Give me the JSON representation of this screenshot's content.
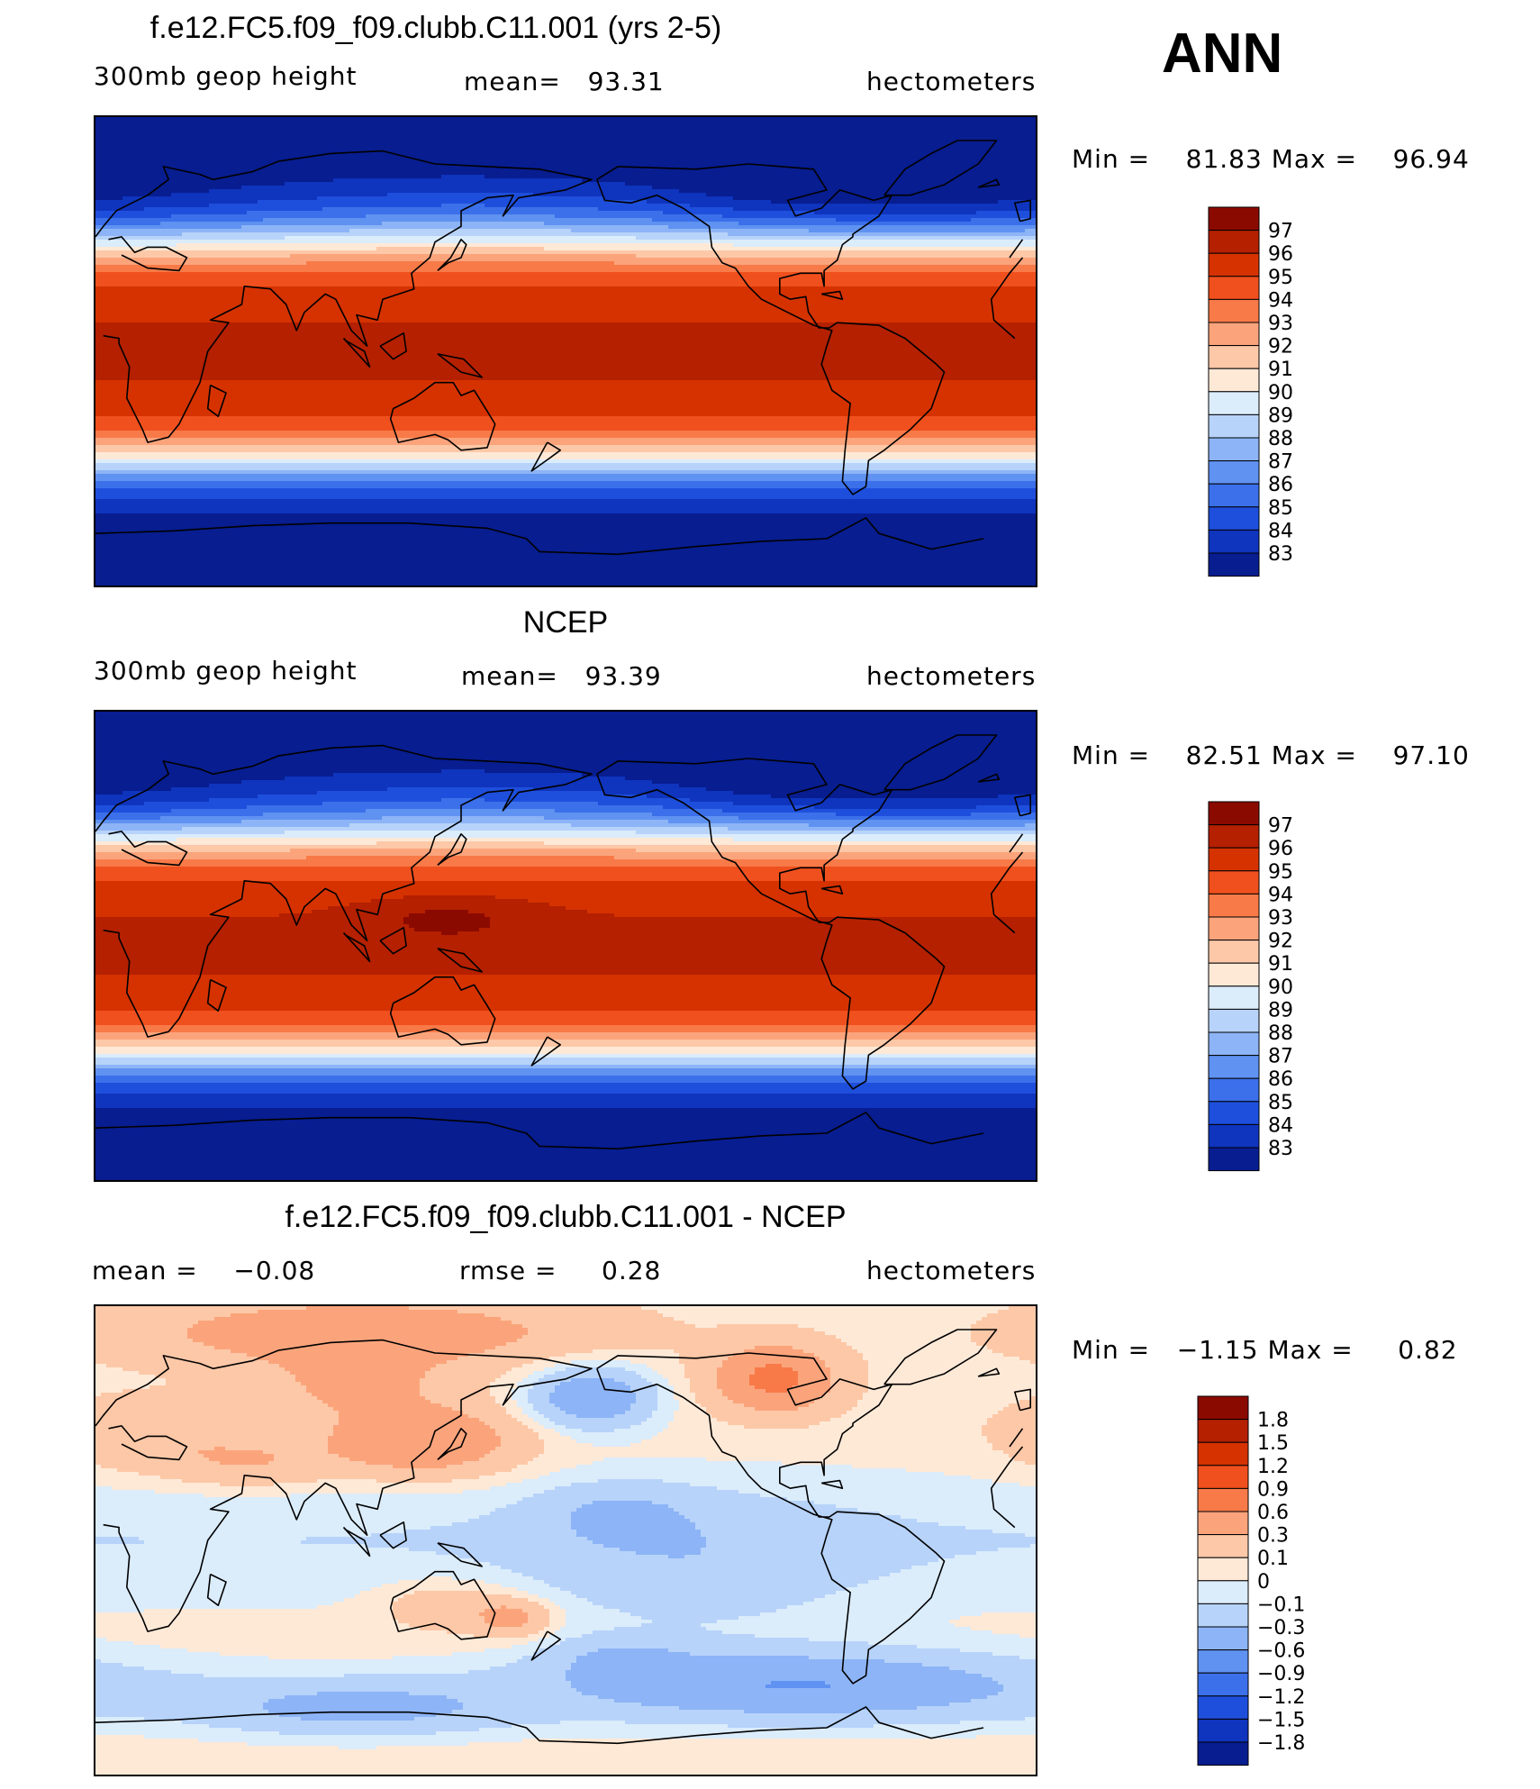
{
  "season": "ANN",
  "chart_data": [
    {
      "type": "heatmap",
      "id": "model",
      "title": "f.e12.FC5.f09_f09.clubb.C11.001 (yrs 2-5)",
      "variable": "300mb geop height",
      "stat1_label": "mean=",
      "stat1_value": "93.31",
      "units": "hectometers",
      "min_label": "Min =",
      "min_value": "81.83",
      "max_label": "Max =",
      "max_value": "96.94",
      "levels": [
        "97",
        "96",
        "95",
        "94",
        "93",
        "92",
        "91",
        "90",
        "89",
        "88",
        "87",
        "86",
        "85",
        "84",
        "83"
      ],
      "colors": [
        "#8b0a00",
        "#b42000",
        "#d53200",
        "#f0501e",
        "#f87a48",
        "#fba47c",
        "#fdc8a7",
        "#fee9d7",
        "#dbecfb",
        "#b7d3fa",
        "#8db4f6",
        "#5f92f1",
        "#3b70ea",
        "#1e4fdc",
        "#0f34bd",
        "#071d90"
      ],
      "grid": false
    },
    {
      "type": "heatmap",
      "id": "obs",
      "title": "NCEP",
      "variable": "300mb geop height",
      "stat1_label": "mean=",
      "stat1_value": "93.39",
      "units": "hectometers",
      "min_label": "Min =",
      "min_value": "82.51",
      "max_label": "Max =",
      "max_value": "97.10",
      "levels": [
        "97",
        "96",
        "95",
        "94",
        "93",
        "92",
        "91",
        "90",
        "89",
        "88",
        "87",
        "86",
        "85",
        "84",
        "83"
      ],
      "colors": [
        "#8b0a00",
        "#b42000",
        "#d53200",
        "#f0501e",
        "#f87a48",
        "#fba47c",
        "#fdc8a7",
        "#fee9d7",
        "#dbecfb",
        "#b7d3fa",
        "#8db4f6",
        "#5f92f1",
        "#3b70ea",
        "#1e4fdc",
        "#0f34bd",
        "#071d90"
      ],
      "grid": false
    },
    {
      "type": "heatmap",
      "id": "diff",
      "title": "f.e12.FC5.f09_f09.clubb.C11.001 - NCEP",
      "stat1_label": "mean =",
      "stat1_value": "−0.08",
      "stat2_label": "rmse =",
      "stat2_value": "0.28",
      "units": "hectometers",
      "min_label": "Min =",
      "min_value": "−1.15",
      "max_label": "Max =",
      "max_value": "0.82",
      "levels": [
        "1.8",
        "1.5",
        "1.2",
        "0.9",
        "0.6",
        "0.3",
        "0.1",
        "0",
        "−0.1",
        "−0.3",
        "−0.6",
        "−0.9",
        "−1.2",
        "−1.5",
        "−1.8"
      ],
      "colors": [
        "#8b0a00",
        "#b42000",
        "#d53200",
        "#f0501e",
        "#f87a48",
        "#fba47c",
        "#fdc8a7",
        "#fee9d7",
        "#dbecfb",
        "#b7d3fa",
        "#8db4f6",
        "#5f92f1",
        "#3b70ea",
        "#1e4fdc",
        "#0f34bd",
        "#071d90"
      ],
      "grid": false
    }
  ]
}
